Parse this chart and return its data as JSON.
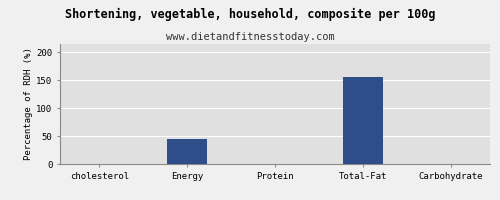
{
  "title": "Shortening, vegetable, household, composite per 100g",
  "subtitle": "www.dietandfitnesstoday.com",
  "categories": [
    "cholesterol",
    "Energy",
    "Protein",
    "Total-Fat",
    "Carbohydrate"
  ],
  "values": [
    0,
    45,
    0,
    155,
    0
  ],
  "bar_color": "#2e4e8a",
  "ylabel": "Percentage of RDH (%)",
  "ylim": [
    0,
    215
  ],
  "yticks": [
    0,
    50,
    100,
    150,
    200
  ],
  "background_color": "#f0f0f0",
  "plot_bg_color": "#e0e0e0",
  "title_fontsize": 8.5,
  "subtitle_fontsize": 7.5,
  "tick_fontsize": 6.5,
  "ylabel_fontsize": 6.5,
  "grid_color": "#ffffff",
  "bar_width": 0.45
}
